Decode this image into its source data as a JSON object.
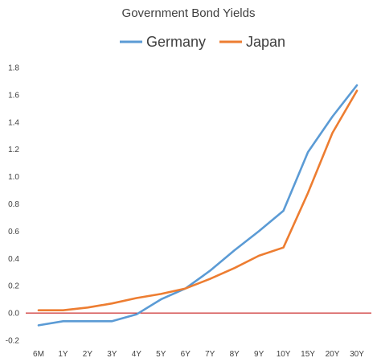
{
  "chart_data": {
    "type": "line",
    "title": "Government Bond Yields",
    "categories": [
      "6M",
      "1Y",
      "2Y",
      "3Y",
      "4Y",
      "5Y",
      "6Y",
      "7Y",
      "8Y",
      "9Y",
      "10Y",
      "15Y",
      "20Y",
      "30Y"
    ],
    "series": [
      {
        "name": "Germany",
        "color": "#5B9BD5",
        "values": [
          -0.09,
          -0.06,
          -0.06,
          -0.06,
          -0.01,
          0.1,
          0.18,
          0.31,
          0.46,
          0.6,
          0.75,
          1.18,
          1.44,
          1.67
        ]
      },
      {
        "name": "Japan",
        "color": "#ED7D31",
        "values": [
          0.02,
          0.02,
          0.04,
          0.07,
          0.11,
          0.14,
          0.18,
          0.25,
          0.33,
          0.42,
          0.48,
          0.88,
          1.32,
          1.63
        ]
      }
    ],
    "y_ticks": [
      "-0.2",
      "0.0",
      "0.2",
      "0.4",
      "0.6",
      "0.8",
      "1.0",
      "1.2",
      "1.4",
      "1.6",
      "1.8"
    ],
    "ylim": [
      -0.2,
      1.8
    ],
    "zero_line_color": "#C00000",
    "grid": false,
    "legend_position": "top"
  }
}
